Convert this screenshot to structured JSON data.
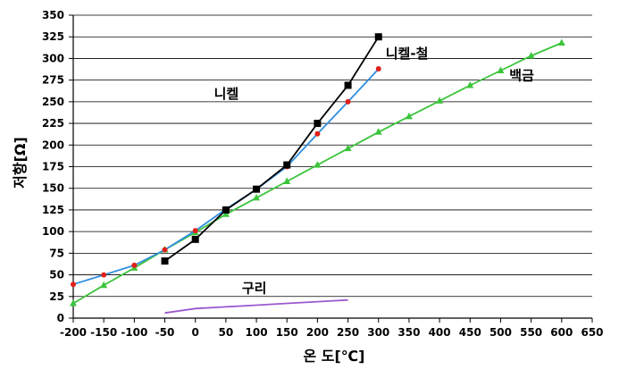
{
  "chart_data": {
    "type": "line",
    "xlabel": "온 도[℃]",
    "ylabel": "저항[Ω]",
    "xlim": [
      -200,
      650
    ],
    "ylim": [
      0,
      350
    ],
    "x_ticks": [
      "-200",
      "-150",
      "-100",
      "-50",
      "0",
      "50",
      "100",
      "150",
      "200",
      "250",
      "300",
      "350",
      "400",
      "450",
      "500",
      "550",
      "600",
      "650"
    ],
    "y_ticks": [
      "0",
      "25",
      "50",
      "75",
      "100",
      "125",
      "150",
      "175",
      "200",
      "225",
      "250",
      "275",
      "300",
      "325",
      "350"
    ],
    "grid": "horizontal",
    "legend": "none",
    "series": [
      {
        "name": "니켈",
        "color": "#000000",
        "marker": "square",
        "x": [
          -50,
          0,
          50,
          100,
          150,
          200,
          250,
          300
        ],
        "y": [
          66,
          91,
          125,
          149,
          177,
          225,
          269,
          325
        ]
      },
      {
        "name": "니켈-철",
        "color": "#2f8fe0",
        "marker": "dot",
        "marker_color": "#e0201a",
        "x": [
          -200,
          -150,
          -100,
          -50,
          0,
          50,
          100,
          150,
          200,
          250,
          300
        ],
        "y": [
          39,
          50,
          61,
          79,
          101,
          126,
          149,
          175,
          213,
          250,
          288
        ]
      },
      {
        "name": "백금",
        "color": "#3cc43c",
        "marker": "triangle",
        "x": [
          -200,
          -150,
          -100,
          -50,
          0,
          50,
          100,
          150,
          200,
          250,
          300,
          350,
          400,
          450,
          500,
          550,
          600
        ],
        "y": [
          17,
          38,
          58,
          79,
          99,
          120,
          139,
          158,
          177,
          196,
          215,
          233,
          251,
          269,
          286,
          303,
          318
        ]
      },
      {
        "name": "구리",
        "color": "#9b59d0",
        "marker": "none",
        "x": [
          -50,
          0,
          50,
          100,
          150,
          200,
          250
        ],
        "y": [
          6,
          11,
          13,
          15,
          17,
          19,
          21
        ]
      }
    ]
  }
}
